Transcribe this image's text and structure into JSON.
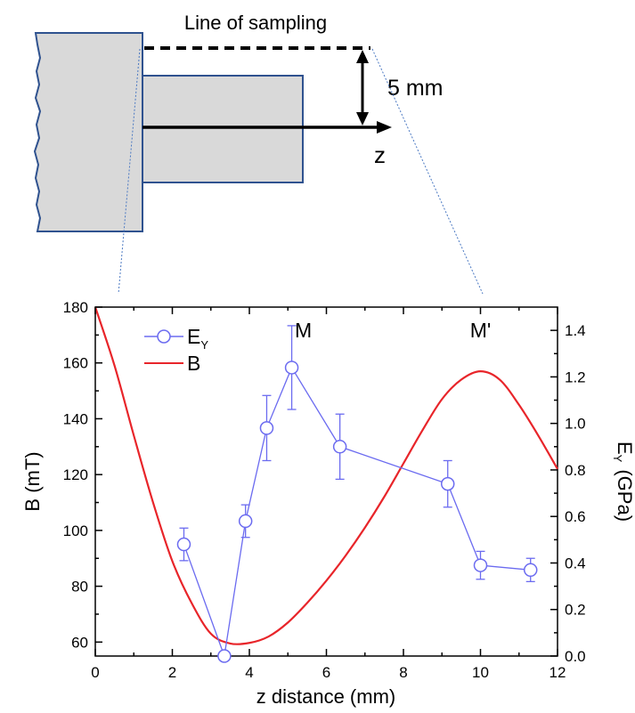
{
  "schematic": {
    "sampling_label": "Line of sampling",
    "distance_label": "5 mm",
    "axis_label": "z"
  },
  "chart_data": {
    "type": "line",
    "xlabel": "z distance (mm)",
    "ylabel_left": "B (mT)",
    "ylabel_right": {
      "base": "E",
      "sub": "Y",
      "unit": "(GPa)"
    },
    "xlim": [
      0,
      12
    ],
    "ylim_left": [
      55,
      180
    ],
    "ylim_right": [
      0.0,
      1.5
    ],
    "x_ticks": [
      0,
      2,
      4,
      6,
      8,
      10,
      12
    ],
    "y_ticks_left": [
      60,
      80,
      100,
      120,
      140,
      160,
      180
    ],
    "y_ticks_right": [
      0.0,
      0.2,
      0.4,
      0.6,
      0.8,
      1.0,
      1.2,
      1.4
    ],
    "y_ticks_right_labels": [
      "0.0",
      "0.2",
      "0.4",
      "0.6",
      "0.8",
      "1.0",
      "1.2",
      "1.4"
    ],
    "legend_position": "top-left",
    "annotations": [
      {
        "text": "M",
        "x": 5.4,
        "y": 1.37
      },
      {
        "text": "M'",
        "x": 10.0,
        "y": 1.37
      }
    ],
    "series": [
      {
        "name": "E",
        "name_sub": "Y",
        "axis": "right",
        "color": "#6b6bf0",
        "style": "line-markers-errorbars",
        "x": [
          2.3,
          3.35,
          3.9,
          4.45,
          5.1,
          6.35,
          9.15,
          10.0,
          11.3
        ],
        "y": [
          0.48,
          0.0,
          0.58,
          0.98,
          1.24,
          0.9,
          0.74,
          0.39,
          0.37
        ],
        "yerr": [
          0.07,
          0.02,
          0.07,
          0.14,
          0.18,
          0.14,
          0.1,
          0.06,
          0.05
        ]
      },
      {
        "name": "B",
        "axis": "left",
        "color": "#e8252a",
        "style": "line",
        "x": [
          0,
          0.5,
          1,
          1.5,
          2,
          2.5,
          3,
          3.5,
          4,
          4.5,
          5,
          5.5,
          6,
          6.5,
          7,
          7.5,
          8,
          8.5,
          9,
          9.5,
          10,
          10.5,
          11,
          11.5,
          12
        ],
        "y": [
          180,
          159,
          134,
          110,
          89,
          74,
          63,
          59.5,
          59.7,
          62,
          67,
          74,
          82,
          91,
          101,
          112,
          124,
          136,
          147,
          154,
          157,
          154,
          145,
          134,
          122
        ]
      }
    ]
  }
}
